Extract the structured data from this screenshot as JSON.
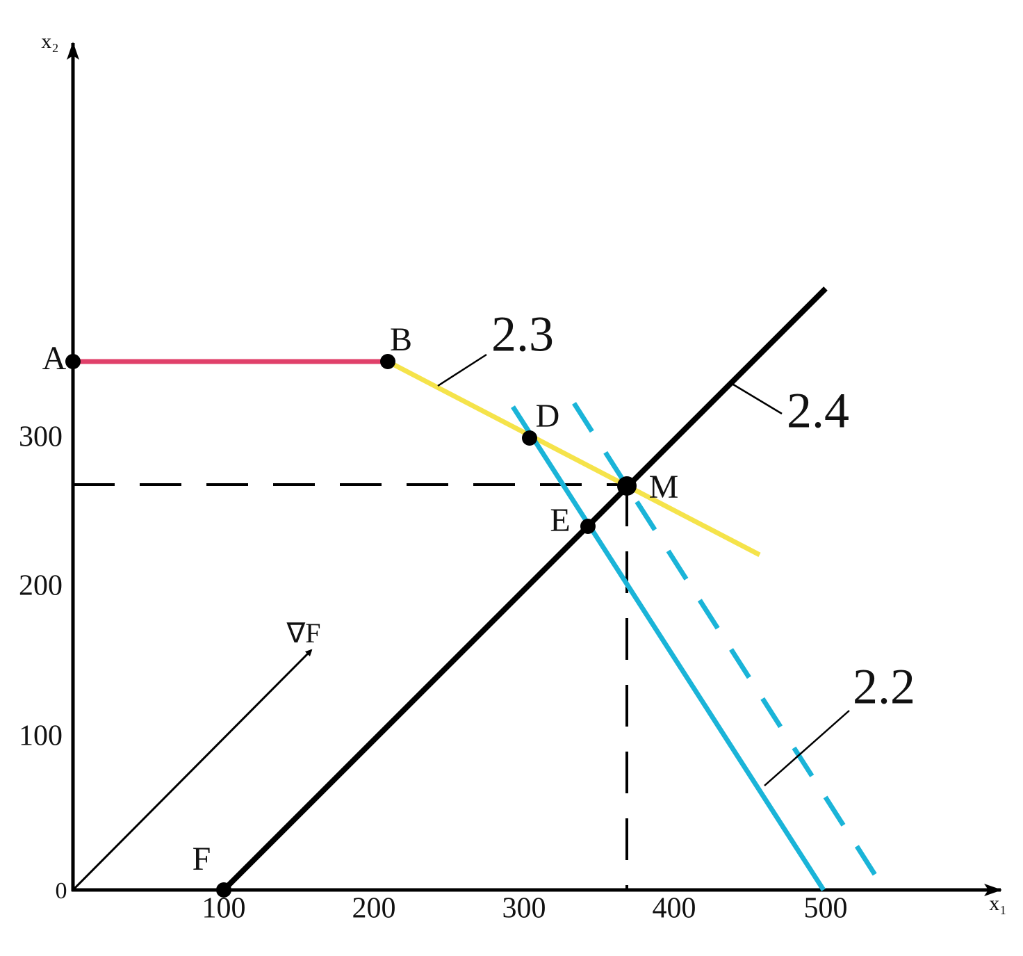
{
  "axes": {
    "x_label": "x₁",
    "y_label": "x₂",
    "origin": "0",
    "x_ticks": [
      "100",
      "200",
      "300",
      "400",
      "500"
    ],
    "y_ticks": [
      "100",
      "200",
      "300"
    ]
  },
  "points": [
    {
      "label": "A"
    },
    {
      "label": "B"
    },
    {
      "label": "D"
    },
    {
      "label": "M"
    },
    {
      "label": "E"
    },
    {
      "label": "F"
    }
  ],
  "line_labels": [
    "2.2",
    "2.3",
    "2.4"
  ],
  "gradient_label": "∇F"
}
